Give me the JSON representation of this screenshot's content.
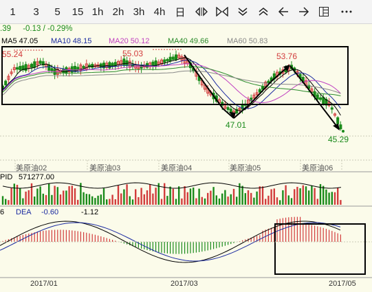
{
  "toolbar": {
    "periods": [
      "1",
      "3",
      "5",
      "15",
      "1h",
      "2h",
      "3h",
      "4h",
      "日"
    ],
    "icons": [
      "expand-horizontal-icon",
      "collapse-horizontal-icon",
      "chevron-down-double-icon",
      "chevron-up-double-icon",
      "arrow-left-icon",
      "arrow-right-icon",
      "layout-icon",
      "more-icon"
    ]
  },
  "info": {
    "last": ".39",
    "change": "-0.13 / -0.29%",
    "ma5": "MA5 47.05",
    "ma10": "MA10 48.15",
    "ma20": "MA20 50.12",
    "ma40": "MA40 49.66",
    "ma60": "MA60 50.83"
  },
  "annotations": {
    "high1": "55.24",
    "high2": "55.03",
    "high3": "53.76",
    "low1": "47.01",
    "low2": "45.29"
  },
  "month_labels": [
    "美原油02",
    "美原油03",
    "美原油04",
    "美原油05",
    "美原油06"
  ],
  "volume": {
    "label": "PID",
    "value": "571277.00"
  },
  "macd": {
    "prefix": "6",
    "dea": "DEA",
    "dea_value": "-0.60",
    "macd_value": "-1.12"
  },
  "dates": [
    "2017/01",
    "2017/03",
    "2017/05"
  ],
  "colors": {
    "up": "#d23c3c",
    "down": "#1a8a1a",
    "ma5": "#000000",
    "ma10": "#1a2aa0",
    "ma20": "#c040c0",
    "ma40": "#2a8a2a",
    "ma60": "#888888",
    "bg": "#fbfbea"
  }
}
